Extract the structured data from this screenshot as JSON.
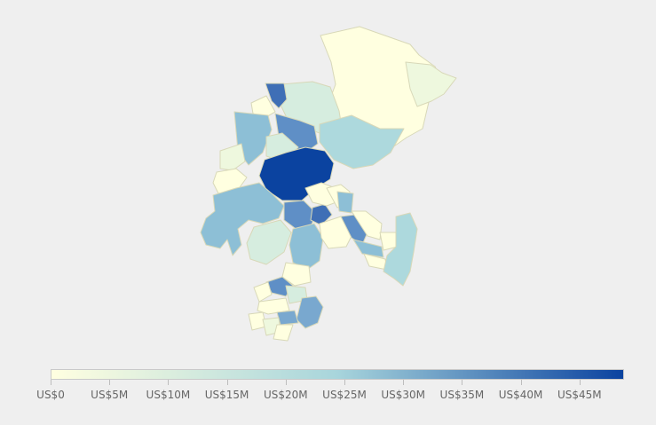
{
  "map": {
    "colors": {
      "c0": "#ffffe0",
      "c1": "#eef8de",
      "c2": "#d6eddf",
      "c3": "#add9dd",
      "c4": "#8dbfd6",
      "c5": "#79a8cf",
      "c6": "#5f8fc6",
      "c7": "#3f6fb6",
      "c8": "#0b43a0"
    }
  },
  "legend": {
    "gradient_start": "#ffffe0",
    "gradient_mid": "#a8d5dc",
    "gradient_end": "#0b43a0",
    "ticks": [
      {
        "label": "US$0"
      },
      {
        "label": "US$5M"
      },
      {
        "label": "US$10M"
      },
      {
        "label": "US$15M"
      },
      {
        "label": "US$20M"
      },
      {
        "label": "US$25M"
      },
      {
        "label": "US$30M"
      },
      {
        "label": "US$35M"
      },
      {
        "label": "US$40M"
      },
      {
        "label": "US$45M"
      }
    ]
  }
}
